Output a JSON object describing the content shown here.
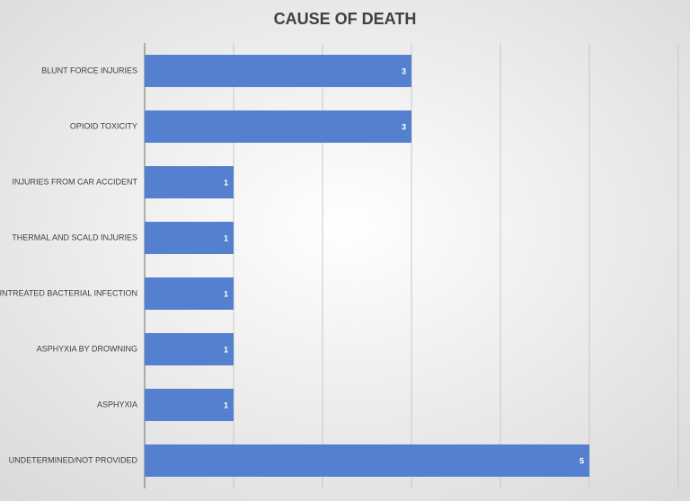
{
  "chart_data": {
    "type": "bar",
    "orientation": "horizontal",
    "title": "CAUSE OF DEATH",
    "categories": [
      "BLUNT FORCE INJURIES",
      "OPIOID TOXICITY",
      "INJURIES FROM CAR ACCIDENT",
      "THERMAL AND SCALD INJURIES",
      "UNTREATED BACTERIAL INFECTION",
      "ASPHYXIA BY DROWNING",
      "ASPHYXIA",
      "UNDETERMINED/NOT PROVIDED"
    ],
    "values": [
      3,
      3,
      1,
      1,
      1,
      1,
      1,
      5
    ],
    "color": "#5580cf",
    "xlim": [
      0,
      6
    ],
    "xticks": [
      0,
      1,
      2,
      3,
      4,
      5,
      6
    ],
    "grid": true
  }
}
